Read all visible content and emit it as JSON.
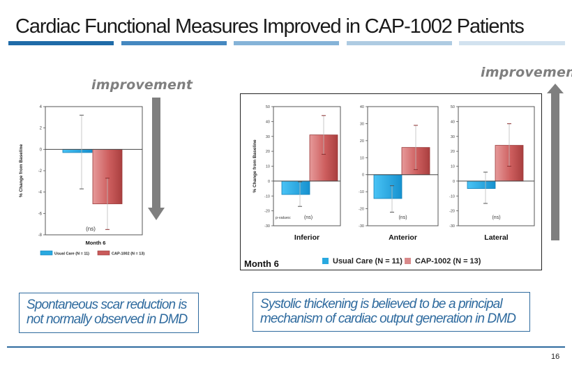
{
  "header": {
    "title": "Cardiac Functional Measures Improved in CAP-1002 Patients",
    "bar_colors": [
      "#1f6ba8",
      "#4588c0",
      "#85b3d8",
      "#aecbe2",
      "#d2e2ef"
    ]
  },
  "left_panel": {
    "improvement_label": "improvement",
    "arrow_direction": "down"
  },
  "right_panel": {
    "improvement_label": "improvement",
    "arrow_direction": "up",
    "month_label": "Month 6",
    "legend": [
      {
        "label": "Usual Care (N = 11)",
        "color": "#29a9e0"
      },
      {
        "label": "CAP-1002 (N = 13)",
        "color": "#c95a5a"
      }
    ]
  },
  "notes": [
    {
      "line1": "Spontaneous scar reduction is",
      "line2": "not normally observed in DMD"
    },
    {
      "line1": "Systolic thickening is believed to be a principal",
      "line2": "mechanism of cardiac output generation in DMD"
    }
  ],
  "footer": {
    "page_number": "16"
  },
  "colors": {
    "usual_care": "#29a9e0",
    "cap1002": "#c95a5a",
    "arrow": "#7f7f7f",
    "accent": "#2e6a9e"
  },
  "chart_data": [
    {
      "type": "bar",
      "title": "",
      "xlabel": "Month 6",
      "ylabel": "% Change from Baseline",
      "ylim": [
        -8,
        4
      ],
      "yticks": [
        4,
        2,
        0,
        -2,
        -4,
        -6,
        -8
      ],
      "categories": [
        "Month 6"
      ],
      "series": [
        {
          "name": "Usual Care (N = 11)",
          "values": [
            -0.3
          ],
          "error_low": [
            -3.7
          ],
          "error_high": [
            3.2
          ]
        },
        {
          "name": "CAP-1002 (N = 13)",
          "values": [
            -5.1
          ],
          "error_low": [
            -7.5
          ],
          "error_high": [
            -2.7
          ]
        }
      ],
      "annotations": [
        "(ns)"
      ],
      "legend": "bottom",
      "grid": false
    },
    {
      "type": "bar",
      "title": "",
      "xlabel": "Inferior",
      "ylabel": "% Change from Baseline",
      "ylim": [
        -30,
        50
      ],
      "yticks": [
        50,
        40,
        30,
        20,
        10,
        0,
        -10,
        -20,
        -30
      ],
      "series": [
        {
          "name": "Usual Care (N = 11)",
          "values": [
            -9
          ],
          "error_low": [
            -17
          ],
          "error_high": [
            -0.5
          ]
        },
        {
          "name": "CAP-1002 (N = 13)",
          "values": [
            31
          ],
          "error_low": [
            18
          ],
          "error_high": [
            44
          ]
        }
      ],
      "annotations": [
        "p-values:",
        "(ns)"
      ],
      "legend": "bottom",
      "grid": false
    },
    {
      "type": "bar",
      "title": "",
      "xlabel": "Anterior",
      "ylabel": "",
      "ylim": [
        -30,
        40
      ],
      "yticks": [
        40,
        30,
        20,
        10,
        0,
        -10,
        -20,
        -30
      ],
      "series": [
        {
          "name": "Usual Care (N = 11)",
          "values": [
            -14
          ],
          "error_low": [
            -22
          ],
          "error_high": [
            -6.5
          ]
        },
        {
          "name": "CAP-1002 (N = 13)",
          "values": [
            16
          ],
          "error_low": [
            3
          ],
          "error_high": [
            29
          ]
        }
      ],
      "annotations": [
        "(ns)"
      ],
      "legend": "bottom",
      "grid": false
    },
    {
      "type": "bar",
      "title": "",
      "xlabel": "Lateral",
      "ylabel": "",
      "ylim": [
        -30,
        50
      ],
      "yticks": [
        50,
        40,
        30,
        20,
        10,
        0,
        -10,
        -20,
        -30
      ],
      "series": [
        {
          "name": "Usual Care (N = 11)",
          "values": [
            -5
          ],
          "error_low": [
            -15
          ],
          "error_high": [
            6
          ]
        },
        {
          "name": "CAP-1002 (N = 13)",
          "values": [
            24
          ],
          "error_low": [
            10
          ],
          "error_high": [
            38.5
          ]
        }
      ],
      "annotations": [
        "(ns)"
      ],
      "legend": "bottom",
      "grid": false
    }
  ]
}
